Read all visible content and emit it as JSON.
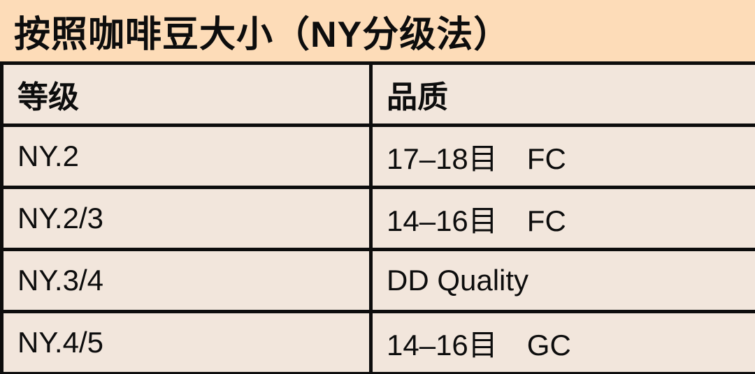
{
  "chart_data": {
    "type": "table",
    "title": "按照咖啡豆大小（NY分级法）",
    "columns": [
      "等级",
      "品质"
    ],
    "rows": [
      [
        "NY.2",
        "17–18目　FC"
      ],
      [
        "NY.2/3",
        "14–16目　FC"
      ],
      [
        "NY.3/4",
        "DD Quality"
      ],
      [
        "NY.4/5",
        "14–16目　GC"
      ]
    ]
  },
  "colors": {
    "title_background": "#fddcb8",
    "cell_background": "#f2e6dc",
    "border": "#0d0d0d",
    "text": "#0d0d0d"
  }
}
